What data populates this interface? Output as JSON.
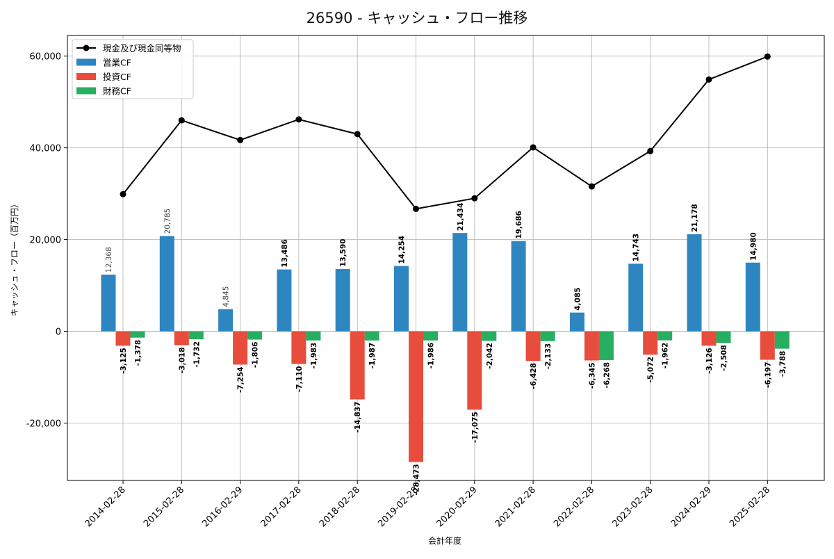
{
  "chart_data": {
    "type": "bar",
    "title": "26590 - キャッシュ・フロー推移",
    "xlabel": "会計年度",
    "ylabel": "キャッシュ・フロー（百万円）",
    "ylim": [
      -32500,
      64500
    ],
    "yticks": [
      -20000,
      0,
      20000,
      40000,
      60000
    ],
    "ytick_labels": [
      "-20,000",
      "0",
      "20,000",
      "40,000",
      "60,000"
    ],
    "grid": true,
    "legend_position": "top-left",
    "categories": [
      "2014-02-28",
      "2015-02-28",
      "2016-02-29",
      "2017-02-28",
      "2018-02-28",
      "2019-02-28",
      "2020-02-29",
      "2021-02-28",
      "2022-02-28",
      "2023-02-28",
      "2024-02-29",
      "2025-02-28"
    ],
    "series": [
      {
        "name": "営業CF",
        "type": "bar",
        "color": "#2e86c1",
        "values": [
          12368,
          20785,
          4845,
          13486,
          13590,
          14254,
          21434,
          19686,
          4085,
          14743,
          21178,
          14980
        ],
        "labels": [
          "12,368",
          "20,785",
          "4,845",
          "13,486",
          "13,590",
          "14,254",
          "21,434",
          "19,686",
          "4,085",
          "14,743",
          "21,178",
          "14,980"
        ]
      },
      {
        "name": "投資CF",
        "type": "bar",
        "color": "#e74c3c",
        "values": [
          -3125,
          -3018,
          -7254,
          -7110,
          -14837,
          -28473,
          -17075,
          -6428,
          -6345,
          -5072,
          -3126,
          -6197
        ],
        "labels": [
          "-3,125",
          "-3,018",
          "-7,254",
          "-7,110",
          "-14,837",
          "-28,473",
          "-17,075",
          "-6,428",
          "-6,345",
          "-5,072",
          "-3,126",
          "-6,197"
        ]
      },
      {
        "name": "財務CF",
        "type": "bar",
        "color": "#27ae60",
        "values": [
          -1378,
          -1732,
          -1806,
          -1983,
          -1987,
          -1986,
          -2042,
          -2133,
          -6268,
          -1962,
          -2508,
          -3788
        ],
        "labels": [
          "-1,378",
          "-1,732",
          "-1,806",
          "-1,983",
          "-1,987",
          "-1,986",
          "-2,042",
          "-2,133",
          "-6,268",
          "-1,962",
          "-2,508",
          "-3,788"
        ]
      },
      {
        "name": "現金及び現金同等物",
        "type": "line",
        "color": "#000000",
        "values": [
          29900,
          46000,
          41700,
          46200,
          43000,
          26700,
          29000,
          40100,
          31600,
          39300,
          54900,
          59900
        ]
      }
    ]
  }
}
